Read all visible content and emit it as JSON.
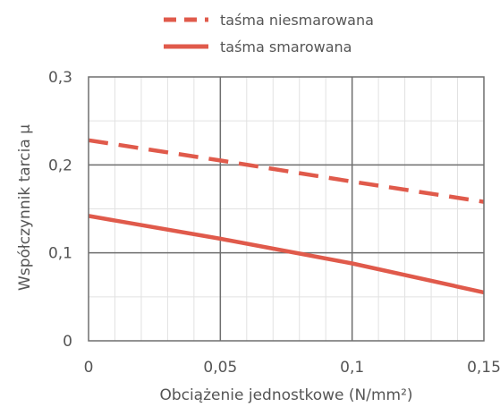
{
  "chart_data": {
    "type": "line",
    "title": "",
    "xlabel": "Obciążenie jednostkowe (N/mm²)",
    "ylabel": "Współczynnik tarcia μ",
    "xlim": [
      0,
      0.15
    ],
    "ylim": [
      0,
      0.3
    ],
    "x_ticks": [
      0,
      0.05,
      0.1,
      0.15
    ],
    "x_tick_labels": [
      "0",
      "0,05",
      "0,1",
      "0,15"
    ],
    "y_ticks": [
      0,
      0.1,
      0.2,
      0.3
    ],
    "y_tick_labels": [
      "0",
      "0,1",
      "0,2",
      "0,3"
    ],
    "grid": true,
    "legend_position": "top-center",
    "series": [
      {
        "name": "taśma niesmarowana",
        "style": "dashed",
        "color": "#e05a4b",
        "x": [
          0,
          0.05,
          0.1,
          0.15
        ],
        "y": [
          0.228,
          0.205,
          0.181,
          0.158
        ]
      },
      {
        "name": "taśma smarowana",
        "style": "solid",
        "color": "#e05a4b",
        "x": [
          0,
          0.05,
          0.1,
          0.15
        ],
        "y": [
          0.142,
          0.116,
          0.088,
          0.055
        ]
      }
    ]
  }
}
